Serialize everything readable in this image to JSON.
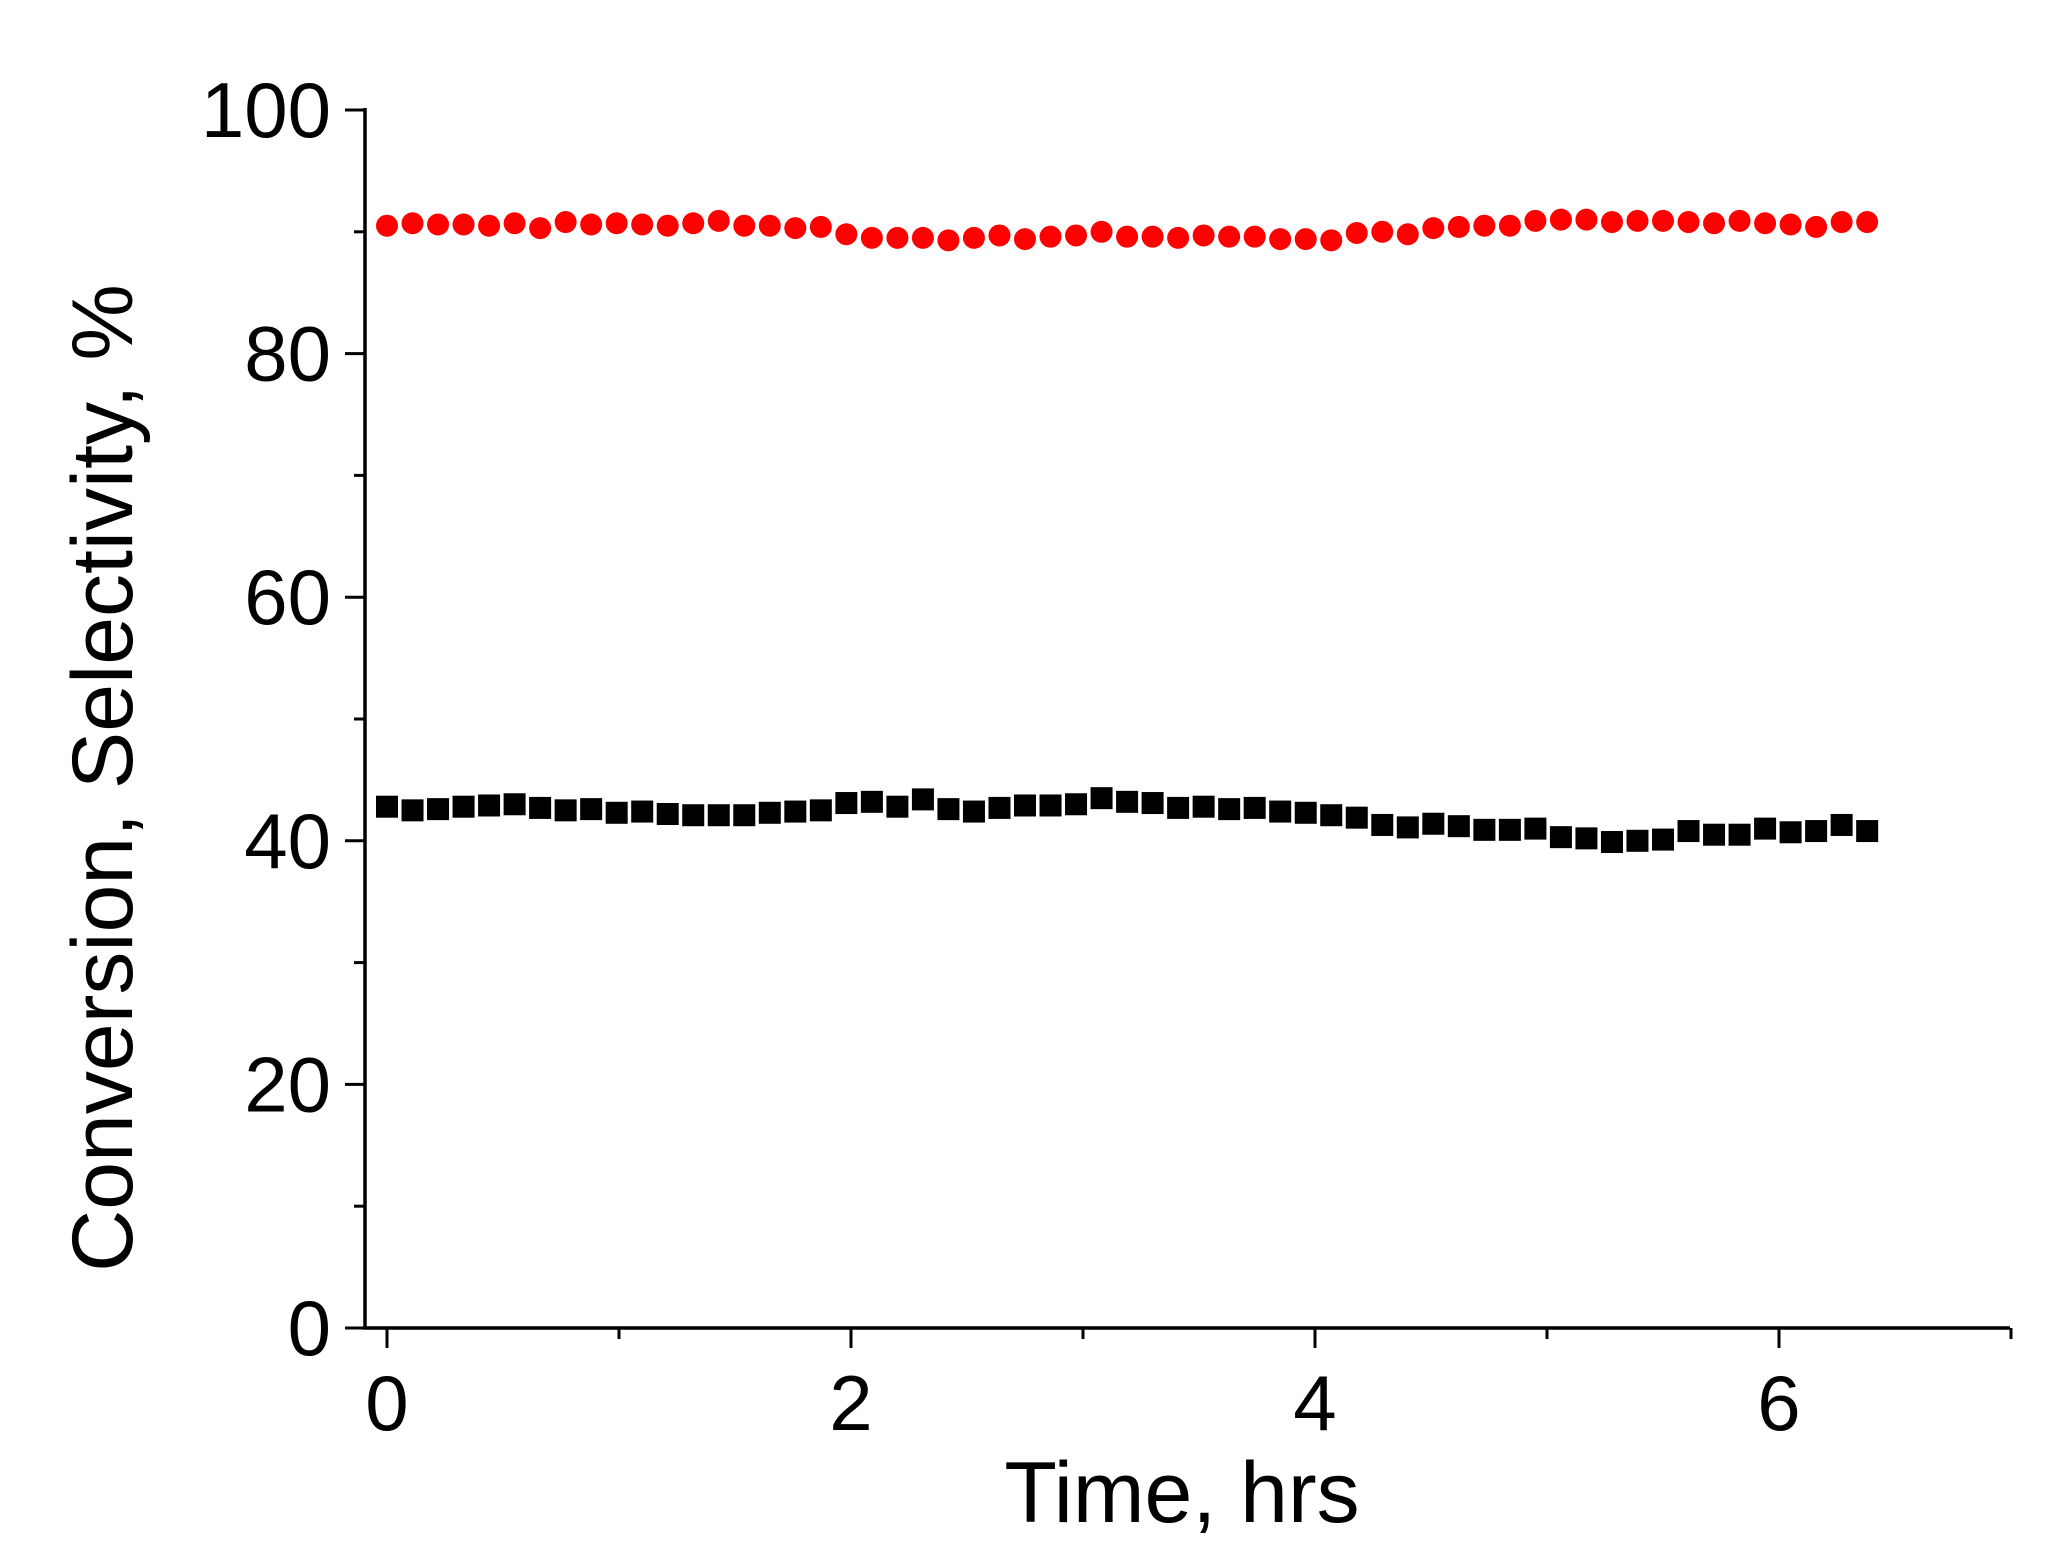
{
  "chart_data": {
    "type": "scatter",
    "xlabel": "Time, hrs",
    "ylabel": "Conversion, Selectivity, %",
    "xlim": [
      -0.1,
      7
    ],
    "ylim": [
      0,
      100
    ],
    "x_ticks": [
      "0",
      "2",
      "4",
      "6"
    ],
    "y_ticks": [
      "0",
      "20",
      "40",
      "60",
      "80",
      "100"
    ],
    "grid": false,
    "legend": "none",
    "series": [
      {
        "color": "#ff0000",
        "marker": "circle",
        "x": [
          0.0,
          0.11,
          0.22,
          0.33,
          0.44,
          0.55,
          0.66,
          0.77,
          0.88,
          0.99,
          1.1,
          1.21,
          1.32,
          1.43,
          1.54,
          1.65,
          1.76,
          1.87,
          1.98,
          2.09,
          2.2,
          2.31,
          2.42,
          2.53,
          2.64,
          2.75,
          2.86,
          2.97,
          3.08,
          3.19,
          3.3,
          3.41,
          3.52,
          3.63,
          3.74,
          3.85,
          3.96,
          4.07,
          4.18,
          4.29,
          4.4,
          4.51,
          4.62,
          4.73,
          4.84,
          4.95,
          5.06,
          5.17,
          5.28,
          5.39,
          5.5,
          5.61,
          5.72,
          5.83,
          5.94,
          6.05,
          6.16,
          6.27,
          6.38
        ],
        "y": [
          90.5,
          90.7,
          90.6,
          90.6,
          90.5,
          90.7,
          90.3,
          90.8,
          90.6,
          90.7,
          90.6,
          90.5,
          90.7,
          90.9,
          90.5,
          90.5,
          90.3,
          90.4,
          89.8,
          89.5,
          89.5,
          89.5,
          89.3,
          89.5,
          89.7,
          89.4,
          89.6,
          89.7,
          90.0,
          89.6,
          89.6,
          89.5,
          89.7,
          89.6,
          89.6,
          89.4,
          89.4,
          89.3,
          89.9,
          90.0,
          89.8,
          90.3,
          90.4,
          90.5,
          90.5,
          90.9,
          91.0,
          91.0,
          90.8,
          90.9,
          90.9,
          90.8,
          90.7,
          90.9,
          90.7,
          90.6,
          90.4,
          90.8,
          90.8
        ]
      },
      {
        "color": "#000000",
        "marker": "square",
        "x": [
          0.0,
          0.11,
          0.22,
          0.33,
          0.44,
          0.55,
          0.66,
          0.77,
          0.88,
          0.99,
          1.1,
          1.21,
          1.32,
          1.43,
          1.54,
          1.65,
          1.76,
          1.87,
          1.98,
          2.09,
          2.2,
          2.31,
          2.42,
          2.53,
          2.64,
          2.75,
          2.86,
          2.97,
          3.08,
          3.19,
          3.3,
          3.41,
          3.52,
          3.63,
          3.74,
          3.85,
          3.96,
          4.07,
          4.18,
          4.29,
          4.4,
          4.51,
          4.62,
          4.73,
          4.84,
          4.95,
          5.06,
          5.17,
          5.28,
          5.39,
          5.5,
          5.61,
          5.72,
          5.83,
          5.94,
          6.05,
          6.16,
          6.27,
          6.38
        ],
        "y": [
          42.8,
          42.5,
          42.6,
          42.8,
          42.9,
          43.0,
          42.7,
          42.5,
          42.6,
          42.3,
          42.4,
          42.2,
          42.1,
          42.1,
          42.1,
          42.3,
          42.4,
          42.5,
          43.1,
          43.2,
          42.8,
          43.4,
          42.6,
          42.4,
          42.7,
          42.9,
          42.9,
          43.0,
          43.5,
          43.2,
          43.1,
          42.7,
          42.8,
          42.6,
          42.7,
          42.4,
          42.3,
          42.1,
          41.9,
          41.3,
          41.1,
          41.4,
          41.2,
          40.9,
          40.9,
          41.0,
          40.3,
          40.2,
          39.9,
          40.0,
          40.1,
          40.8,
          40.5,
          40.5,
          41.0,
          40.7,
          40.8,
          41.3,
          40.8
        ]
      }
    ]
  }
}
